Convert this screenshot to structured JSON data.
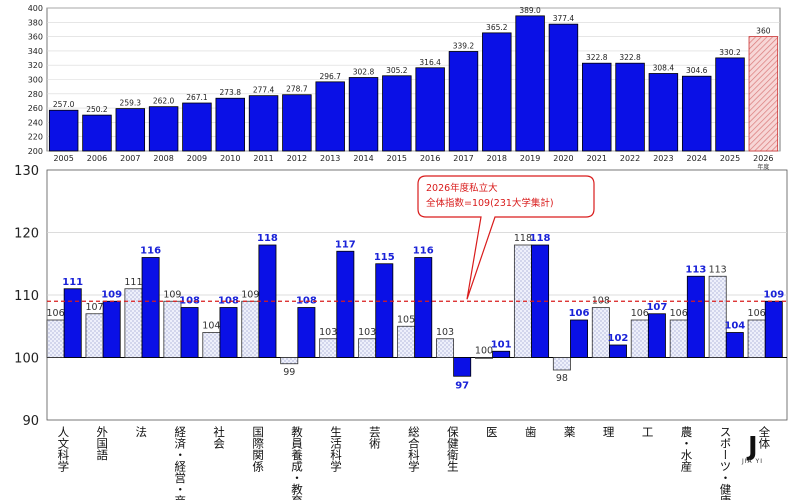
{
  "chart_data": [
    {
      "type": "bar",
      "categories": [
        "2005",
        "2006",
        "2007",
        "2008",
        "2009",
        "2010",
        "2011",
        "2012",
        "2013",
        "2014",
        "2015",
        "2016",
        "2017",
        "2018",
        "2019",
        "2020",
        "2021",
        "2022",
        "2023",
        "2024",
        "2025",
        "2026"
      ],
      "values": [
        257.0,
        250.2,
        259.3,
        262.0,
        267.1,
        273.8,
        277.4,
        278.7,
        296.7,
        302.8,
        305.2,
        316.4,
        339.2,
        365.2,
        389.0,
        377.4,
        322.8,
        322.8,
        308.4,
        304.6,
        330.2,
        360
      ],
      "value_labels": [
        "257.0",
        "250.2",
        "259.3",
        "262.0",
        "267.1",
        "273.8",
        "277.4",
        "278.7",
        "296.7",
        "302.8",
        "305.2",
        "316.4",
        "339.2",
        "365.2",
        "389.0",
        "377.4",
        "322.8",
        "322.8",
        "308.4",
        "304.6",
        "330.2",
        "360"
      ],
      "highlight_last": true,
      "x_unit_label": "年度",
      "ylim": [
        200,
        400
      ],
      "yticks": [
        200,
        220,
        240,
        260,
        280,
        300,
        320,
        340,
        360,
        380,
        400
      ],
      "grid": true,
      "colors": {
        "bar": "#0a10e6",
        "highlight_bar": "#e9a0a0",
        "highlight_stroke": "#cc3333"
      }
    },
    {
      "type": "bar",
      "categories": [
        "人文科学",
        "外国語",
        "法",
        "経済・経営・商",
        "社会",
        "国際関係",
        "教員養成・教育",
        "生活科学",
        "芸術",
        "総合科学",
        "保健衛生",
        "医",
        "歯",
        "薬",
        "理",
        "工",
        "農・水産",
        "スポーツ・健康",
        "全体"
      ],
      "series": [
        {
          "values": [
            106,
            107,
            111,
            109,
            104,
            109,
            99,
            103,
            103,
            105,
            103,
            100,
            118,
            98,
            108,
            106,
            106,
            113,
            106
          ],
          "style": "dotted"
        },
        {
          "values": [
            111,
            109,
            116,
            108,
            108,
            118,
            108,
            117,
            115,
            116,
            97,
            101,
            118,
            106,
            102,
            107,
            113,
            104,
            109
          ],
          "style": "solid"
        }
      ],
      "ylim": [
        90,
        130
      ],
      "yticks": [
        90,
        100,
        110,
        120,
        130
      ],
      "grid": true,
      "reference_line": {
        "value": 109,
        "color": "#d91c1c"
      },
      "annotation": {
        "lines": [
          "2026年度私立大",
          "全体指数=109(231大学集計)"
        ]
      },
      "colors": {
        "solid": "#0a10e6",
        "dotted_fill": "#eef0fb",
        "dotted_dot": "#8c94c8",
        "label_solid": "#1a22d8",
        "label_dotted": "#333333"
      }
    }
  ],
  "watermark": {
    "text": "JIA YI",
    "monogram": "J"
  }
}
